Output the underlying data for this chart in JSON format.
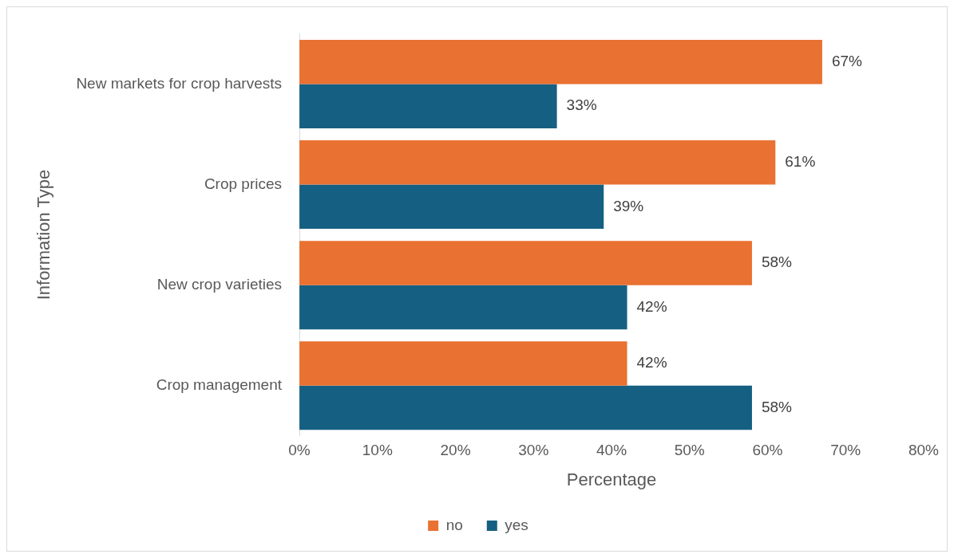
{
  "chart_data": {
    "type": "bar",
    "orientation": "horizontal",
    "xlabel": "Percentage",
    "ylabel": "Information Type",
    "categories": [
      "New markets for crop harvests",
      "Crop prices",
      "New crop varieties",
      "Crop management"
    ],
    "series": [
      {
        "name": "no",
        "color": "#e97132",
        "values": [
          67,
          61,
          58,
          42
        ],
        "value_labels": [
          "67%",
          "61%",
          "58%",
          "42%"
        ]
      },
      {
        "name": "yes",
        "color": "#156082",
        "values": [
          33,
          39,
          42,
          58
        ],
        "value_labels": [
          "33%",
          "39%",
          "42%",
          "58%"
        ]
      }
    ],
    "xlim": [
      0,
      80
    ],
    "xticks": [
      {
        "value": 0,
        "label": "0%"
      },
      {
        "value": 10,
        "label": "10%"
      },
      {
        "value": 20,
        "label": "20%"
      },
      {
        "value": 30,
        "label": "30%"
      },
      {
        "value": 40,
        "label": "40%"
      },
      {
        "value": 50,
        "label": "50%"
      },
      {
        "value": 60,
        "label": "60%"
      },
      {
        "value": 70,
        "label": "70%"
      },
      {
        "value": 80,
        "label": "80%"
      }
    ],
    "grid": false,
    "legend": "bottom"
  }
}
